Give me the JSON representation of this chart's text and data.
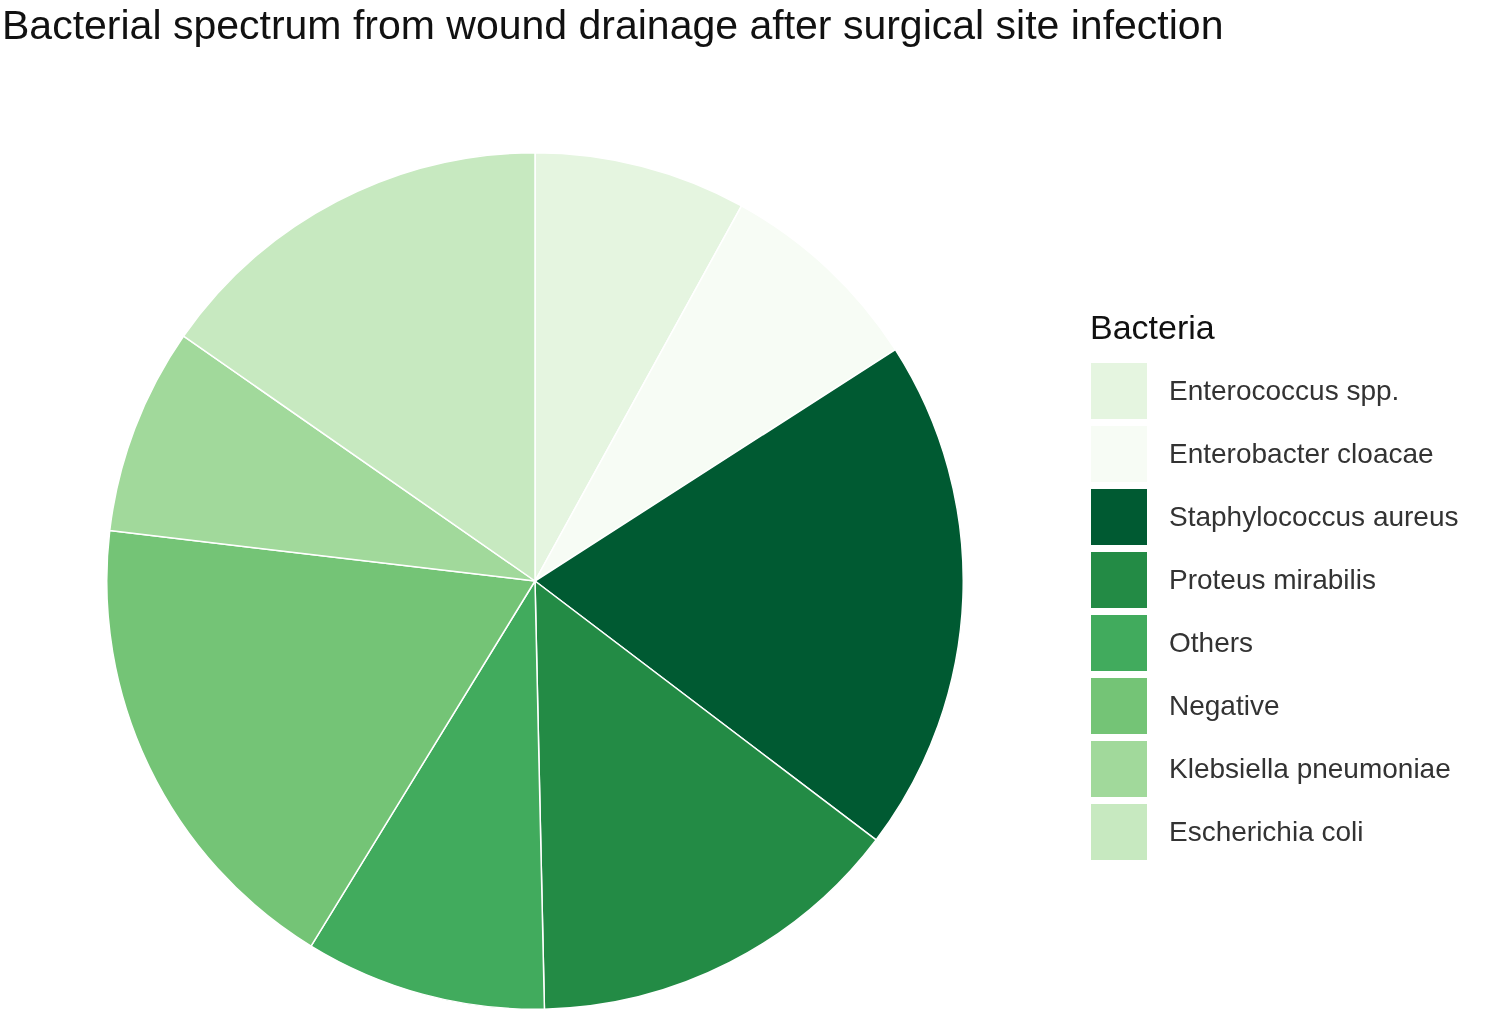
{
  "chart_data": {
    "type": "pie",
    "title": "Bacterial spectrum from wound drainage after surgical site infection",
    "legend_title": "Bacteria",
    "legend": "right",
    "categories": [
      "Enterococcus spp.",
      "Enterobacter cloacae",
      "Staphylococcus aureus",
      "Proteus mirabilis",
      "Others",
      "Negative",
      "Klebsiella pneumoniae",
      "Escherichia coli"
    ],
    "values": [
      8.0,
      7.9,
      19.4,
      14.3,
      9.1,
      18.1,
      7.8,
      15.3
    ],
    "colors": [
      "#e5f5e0",
      "#f7fcf5",
      "#005a32",
      "#238b45",
      "#41ab5d",
      "#74c476",
      "#a1d99b",
      "#c7e9c0"
    ]
  }
}
